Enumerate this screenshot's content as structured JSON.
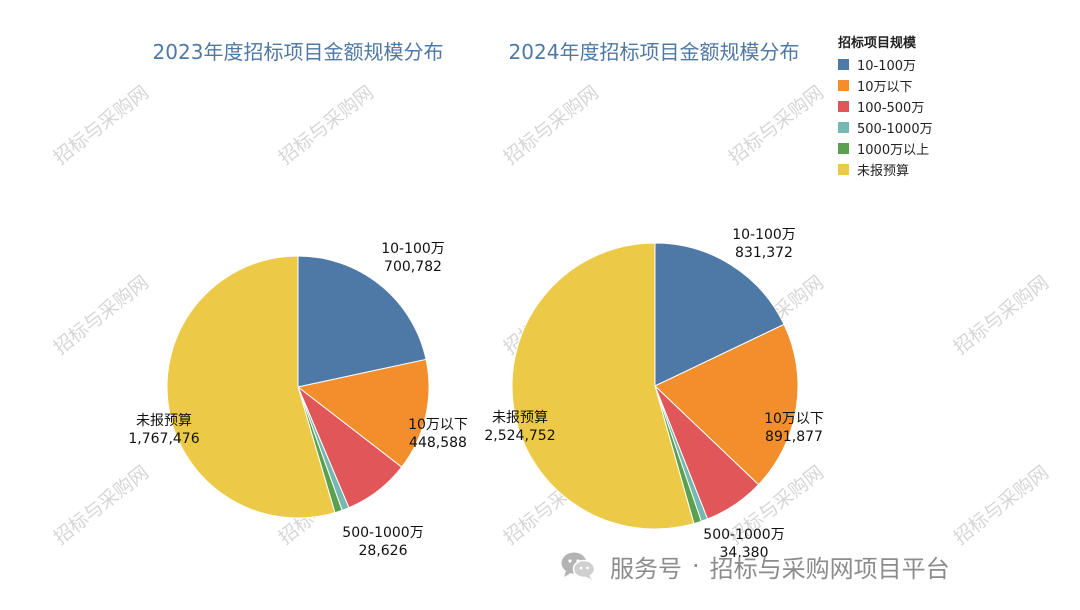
{
  "chart_data": [
    {
      "type": "pie",
      "title": "2023年度招标项目金额规模分布",
      "slices": [
        {
          "label": "10-100万",
          "value": 700782,
          "color": "#4e79a7",
          "show_label": true
        },
        {
          "label": "10万以下",
          "value": 448588,
          "color": "#f28e2b",
          "show_label": true
        },
        {
          "label": "100-500万",
          "value": 265000,
          "color": "#e15759",
          "show_label": false
        },
        {
          "label": "500-1000万",
          "value": 28626,
          "color": "#76b7b2",
          "show_label": true
        },
        {
          "label": "1000万以上",
          "value": 30000,
          "color": "#59a14f",
          "show_label": false
        },
        {
          "label": "未报预算",
          "value": 1767476,
          "color": "#edc948",
          "show_label": true
        }
      ]
    },
    {
      "type": "pie",
      "title": "2024年度招标项目金额规模分布",
      "slices": [
        {
          "label": "10-100万",
          "value": 831372,
          "color": "#4e79a7",
          "show_label": true
        },
        {
          "label": "10万以下",
          "value": 891877,
          "color": "#f28e2b",
          "show_label": true
        },
        {
          "label": "100-500万",
          "value": 320000,
          "color": "#e15759",
          "show_label": false
        },
        {
          "label": "500-1000万",
          "value": 34380,
          "color": "#76b7b2",
          "show_label": true
        },
        {
          "label": "1000万以上",
          "value": 40000,
          "color": "#59a14f",
          "show_label": false
        },
        {
          "label": "未报预算",
          "value": 2524752,
          "color": "#edc948",
          "show_label": true
        }
      ]
    }
  ],
  "legend": {
    "title": "招标项目规模",
    "items": [
      {
        "label": "10-100万",
        "color": "#4e79a7"
      },
      {
        "label": "10万以下",
        "color": "#f28e2b"
      },
      {
        "label": "100-500万",
        "color": "#e15759"
      },
      {
        "label": "500-1000万",
        "color": "#76b7b2"
      },
      {
        "label": "1000万以上",
        "color": "#59a14f"
      },
      {
        "label": "未报预算",
        "color": "#edc948"
      }
    ]
  },
  "watermark": "招标与采购网",
  "footer": {
    "icon": "wechat-icon",
    "prefix": "服务号",
    "separator": "·",
    "name": "招标与采购网项目平台"
  }
}
